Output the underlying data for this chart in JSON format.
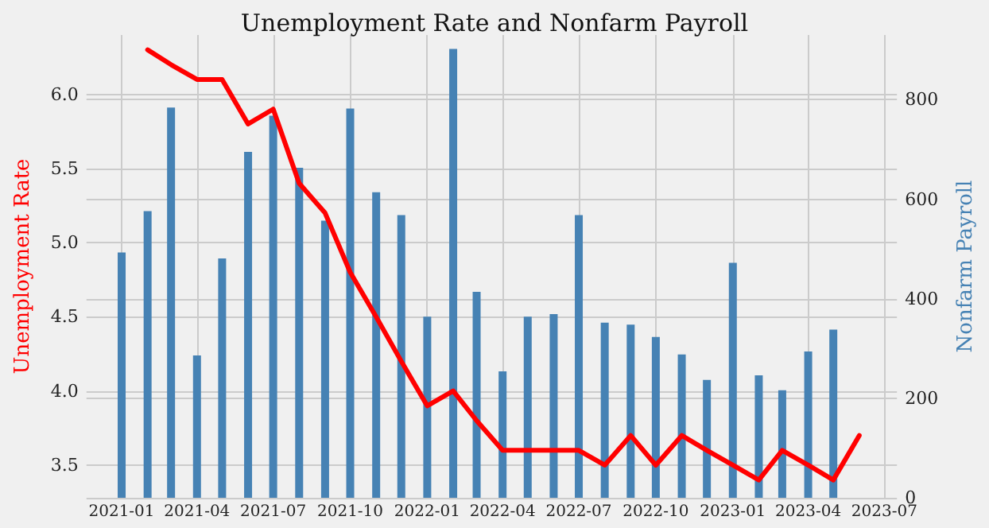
{
  "chart_data": {
    "type": "line",
    "title": "Unemployment Rate and Nonfarm Payroll",
    "ylabel": "Unemployment Rate",
    "y2label": "Nonfarm Payroll",
    "xlim": [
      "2020-11-20",
      "2023-07-16"
    ],
    "xticks": [
      "2021-01",
      "2021-04",
      "2021-07",
      "2021-10",
      "2022-01",
      "2022-04",
      "2022-07",
      "2022-10",
      "2023-01",
      "2023-04",
      "2023-07"
    ],
    "ylim": [
      3.28,
      6.4
    ],
    "yticks": [
      3.5,
      {
        "value": 4,
        "label": "4.0"
      },
      4.5,
      {
        "value": 5,
        "label": "5.0"
      },
      5.5,
      {
        "value": 6,
        "label": "6.0"
      }
    ],
    "y2lim": [
      0,
      930
    ],
    "y2ticks": [
      0,
      200,
      400,
      600,
      800
    ],
    "grid": true,
    "marker": "none",
    "line_style": "solid",
    "series": [
      {
        "type": "bar",
        "axis": "y2",
        "color": "#4682b4",
        "x": [
          "2021-01",
          "2021-02",
          "2021-03",
          "2021-04",
          "2021-05",
          "2021-06",
          "2021-07",
          "2021-08",
          "2021-09",
          "2021-10",
          "2021-11",
          "2021-12",
          "2022-01",
          "2022-02",
          "2022-03",
          "2022-04",
          "2022-05",
          "2022-06",
          "2022-07",
          "2022-08",
          "2022-09",
          "2022-10",
          "2022-11",
          "2022-12",
          "2023-01",
          "2023-02",
          "2023-03",
          "2023-04",
          "2023-05"
        ],
        "values": [
          493,
          576,
          784,
          286,
          481,
          695,
          768,
          663,
          557,
          782,
          614,
          568,
          364,
          902,
          414,
          254,
          364,
          369,
          568,
          352,
          348,
          323,
          288,
          237,
          472,
          246,
          216,
          294,
          338
        ]
      },
      {
        "color": "#ff0000",
        "x": [
          "2021-02",
          "2021-03",
          "2021-04",
          "2021-05",
          "2021-06",
          "2021-07",
          "2021-08",
          "2021-09",
          "2021-10",
          "2021-11",
          "2021-12",
          "2022-01",
          "2022-02",
          "2022-03",
          "2022-04",
          "2022-05",
          "2022-06",
          "2022-07",
          "2022-08",
          "2022-09",
          "2022-10",
          "2022-11",
          "2022-12",
          "2023-01",
          "2023-02",
          "2023-03",
          "2023-04",
          "2023-05",
          "2023-06"
        ],
        "values": [
          6.3,
          6.2,
          6.1,
          6.1,
          5.8,
          5.9,
          5.4,
          5.2,
          4.8,
          4.5,
          4.2,
          3.9,
          4.0,
          3.8,
          3.6,
          3.6,
          3.6,
          3.6,
          3.5,
          3.7,
          3.5,
          3.7,
          3.6,
          3.5,
          3.4,
          3.6,
          3.5,
          3.4,
          3.7
        ]
      }
    ]
  }
}
